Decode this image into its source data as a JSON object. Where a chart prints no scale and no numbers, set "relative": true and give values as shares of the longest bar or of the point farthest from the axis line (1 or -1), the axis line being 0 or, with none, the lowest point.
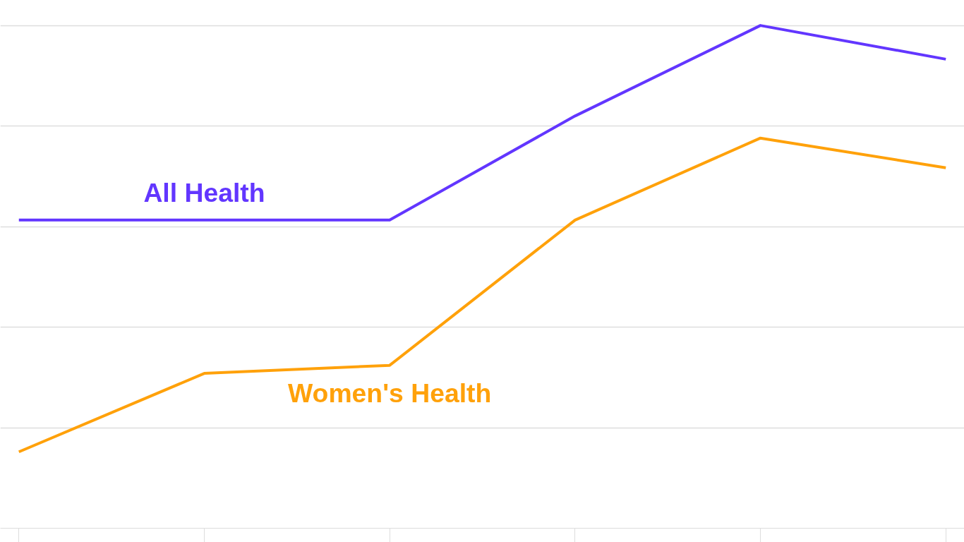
{
  "chart_data": {
    "type": "line",
    "relative": true,
    "categories": [
      null,
      null,
      null,
      null,
      null,
      null
    ],
    "grid": "y",
    "legend": false,
    "marker": "none",
    "line_style": "solid",
    "series": [
      {
        "name": "All Health",
        "color": "#6236ff",
        "values": [
          0.613,
          0.613,
          0.613,
          0.82,
          1.0,
          0.933
        ]
      },
      {
        "name": "Women's Health",
        "color": "#ffa10a",
        "values": [
          0.152,
          0.308,
          0.324,
          0.613,
          0.776,
          0.717
        ]
      }
    ]
  }
}
